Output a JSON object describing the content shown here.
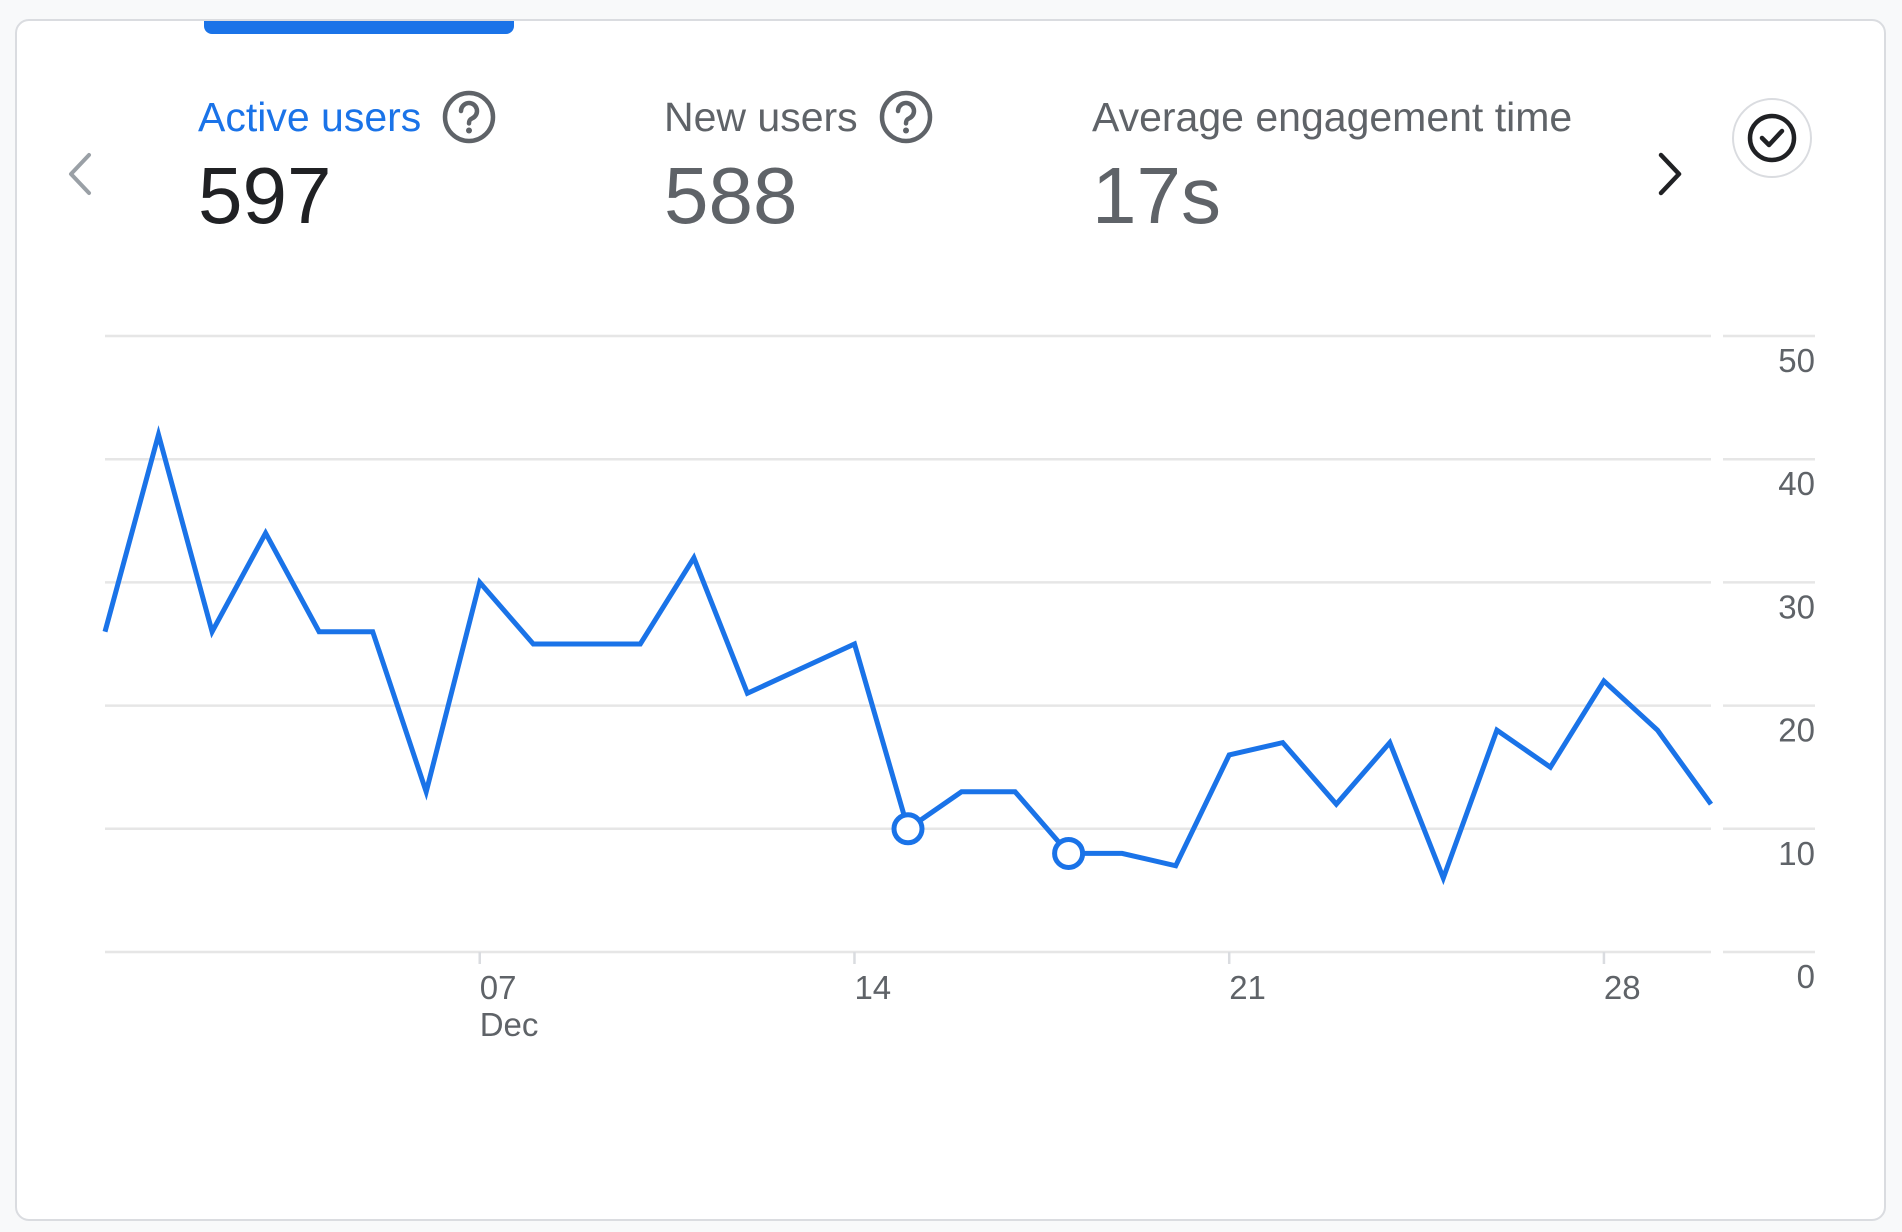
{
  "tabs": [
    {
      "label": "Active users",
      "value": "597",
      "selected": true
    },
    {
      "label": "New users",
      "value": "588",
      "selected": false
    },
    {
      "label": "Average engagement time",
      "value": "17s",
      "selected": false
    }
  ],
  "icons": {
    "prev": "chevron-left-icon",
    "next": "chevron-right-icon",
    "help": "help-circle-icon",
    "check": "check-circle-icon"
  },
  "colors": {
    "accent": "#1a73e8",
    "text_primary": "#202124",
    "text_secondary": "#5f6368",
    "grid": "#e8eaed"
  },
  "chart_data": {
    "type": "line",
    "x_start": "2024-11-30",
    "x_end": "2024-12-30",
    "x_ticks": [
      {
        "label": "07",
        "sublabel": "Dec",
        "date": "2024-12-07"
      },
      {
        "label": "14",
        "date": "2024-12-14"
      },
      {
        "label": "21",
        "date": "2024-12-21"
      },
      {
        "label": "28",
        "date": "2024-12-28"
      }
    ],
    "ylim": [
      0,
      50
    ],
    "y_ticks": [
      0,
      10,
      20,
      30,
      40,
      50
    ],
    "grid": true,
    "series": [
      {
        "name": "Active users",
        "color": "#1a73e8",
        "values": [
          26,
          42,
          26,
          34,
          26,
          26,
          13,
          30,
          25,
          25,
          25,
          32,
          21,
          23,
          25,
          10,
          13,
          13,
          8,
          8,
          7,
          16,
          17,
          12,
          17,
          6,
          18,
          15,
          22,
          18,
          12
        ],
        "marked_points": [
          15,
          18
        ]
      }
    ]
  }
}
